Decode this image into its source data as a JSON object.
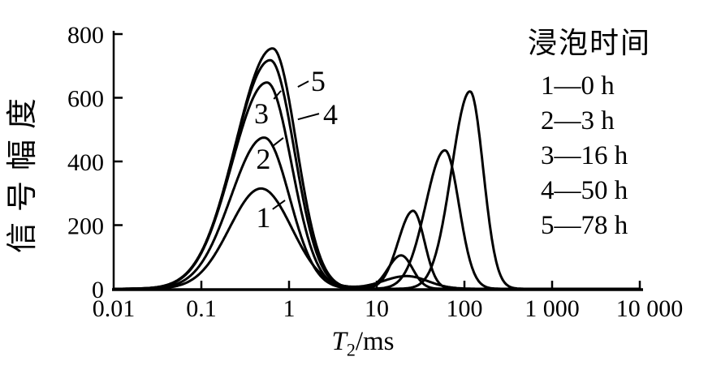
{
  "figure": {
    "legend": {
      "title": "浸泡时间",
      "entries": [
        "1—0 h",
        "2—3 h",
        "3—16 h",
        "4—50 h",
        "5—78 h"
      ]
    }
  },
  "chart_data": {
    "type": "line",
    "title": "",
    "xlabel": "T2/ms",
    "xlabel_display": {
      "var": "T",
      "sub": "2",
      "unit": "/ms"
    },
    "ylabel": "信号幅度",
    "x_scale": "log",
    "xlim": [
      0.01,
      10000
    ],
    "ylim": [
      0,
      800
    ],
    "grid": false,
    "legend_position": "top-right",
    "x_ticks": [
      {
        "value": 0.01,
        "label": "0.01"
      },
      {
        "value": 0.1,
        "label": "0.1"
      },
      {
        "value": 1,
        "label": "1"
      },
      {
        "value": 10,
        "label": "10"
      },
      {
        "value": 100,
        "label": "100"
      },
      {
        "value": 1000,
        "label": "1 000"
      },
      {
        "value": 10000,
        "label": "10 000"
      }
    ],
    "y_ticks": [
      {
        "value": 0,
        "label": "0"
      },
      {
        "value": 200,
        "label": "200"
      },
      {
        "value": 400,
        "label": "400"
      },
      {
        "value": 600,
        "label": "600"
      },
      {
        "value": 800,
        "label": "800"
      }
    ],
    "series": [
      {
        "name": "1",
        "soak_time": "0 h",
        "peaks": [
          {
            "center_ms": 0.48,
            "amplitude": 315,
            "sigma_left_decades": 0.36,
            "sigma_right_decades": 0.35
          },
          {
            "center_ms": 22,
            "amplitude": 40,
            "sigma_left_decades": 0.27,
            "sigma_right_decades": 0.24
          }
        ]
      },
      {
        "name": "2",
        "soak_time": "3 h",
        "peaks": [
          {
            "center_ms": 0.52,
            "amplitude": 475,
            "sigma_left_decades": 0.38,
            "sigma_right_decades": 0.29
          },
          {
            "center_ms": 19,
            "amplitude": 105,
            "sigma_left_decades": 0.15,
            "sigma_right_decades": 0.13
          }
        ]
      },
      {
        "name": "3",
        "soak_time": "16 h",
        "peaks": [
          {
            "center_ms": 0.56,
            "amplitude": 648,
            "sigma_left_decades": 0.4,
            "sigma_right_decades": 0.28
          },
          {
            "center_ms": 26,
            "amplitude": 245,
            "sigma_left_decades": 0.17,
            "sigma_right_decades": 0.13
          }
        ]
      },
      {
        "name": "4",
        "soak_time": "50 h",
        "peaks": [
          {
            "center_ms": 0.61,
            "amplitude": 718,
            "sigma_left_decades": 0.41,
            "sigma_right_decades": 0.275
          },
          {
            "center_ms": 60,
            "amplitude": 435,
            "sigma_left_decades": 0.22,
            "sigma_right_decades": 0.16
          }
        ]
      },
      {
        "name": "5",
        "soak_time": "78 h",
        "peaks": [
          {
            "center_ms": 0.65,
            "amplitude": 755,
            "sigma_left_decades": 0.42,
            "sigma_right_decades": 0.27
          },
          {
            "center_ms": 116,
            "amplitude": 620,
            "sigma_left_decades": 0.21,
            "sigma_right_decades": 0.15
          }
        ]
      }
    ],
    "annotations": [
      {
        "text": "1",
        "at": {
          "ms": 0.51,
          "amplitude": 224
        },
        "leader": {
          "from": {
            "ms": 0.65,
            "amplitude": 250
          },
          "to": {
            "ms": 0.9,
            "amplitude": 278
          }
        }
      },
      {
        "text": "2",
        "at": {
          "ms": 0.51,
          "amplitude": 408
        },
        "leader": {
          "from": {
            "ms": 0.65,
            "amplitude": 448
          },
          "to": {
            "ms": 0.86,
            "amplitude": 474
          }
        }
      },
      {
        "text": "3",
        "at": {
          "ms": 0.485,
          "amplitude": 550
        },
        "leader": {
          "from": {
            "ms": 0.67,
            "amplitude": 596
          },
          "to": {
            "ms": 0.81,
            "amplitude": 622
          }
        }
      },
      {
        "text": "4",
        "at": {
          "ms": 2.97,
          "amplitude": 548
        },
        "leader": {
          "from": {
            "ms": 1.26,
            "amplitude": 532
          },
          "to": {
            "ms": 2.2,
            "amplitude": 550
          }
        }
      },
      {
        "text": "5",
        "at": {
          "ms": 2.15,
          "amplitude": 652
        },
        "leader": {
          "from": {
            "ms": 1.26,
            "amplitude": 634
          },
          "to": {
            "ms": 1.67,
            "amplitude": 652
          }
        }
      }
    ],
    "colors": {
      "line": "#000000",
      "background": "#ffffff"
    }
  }
}
